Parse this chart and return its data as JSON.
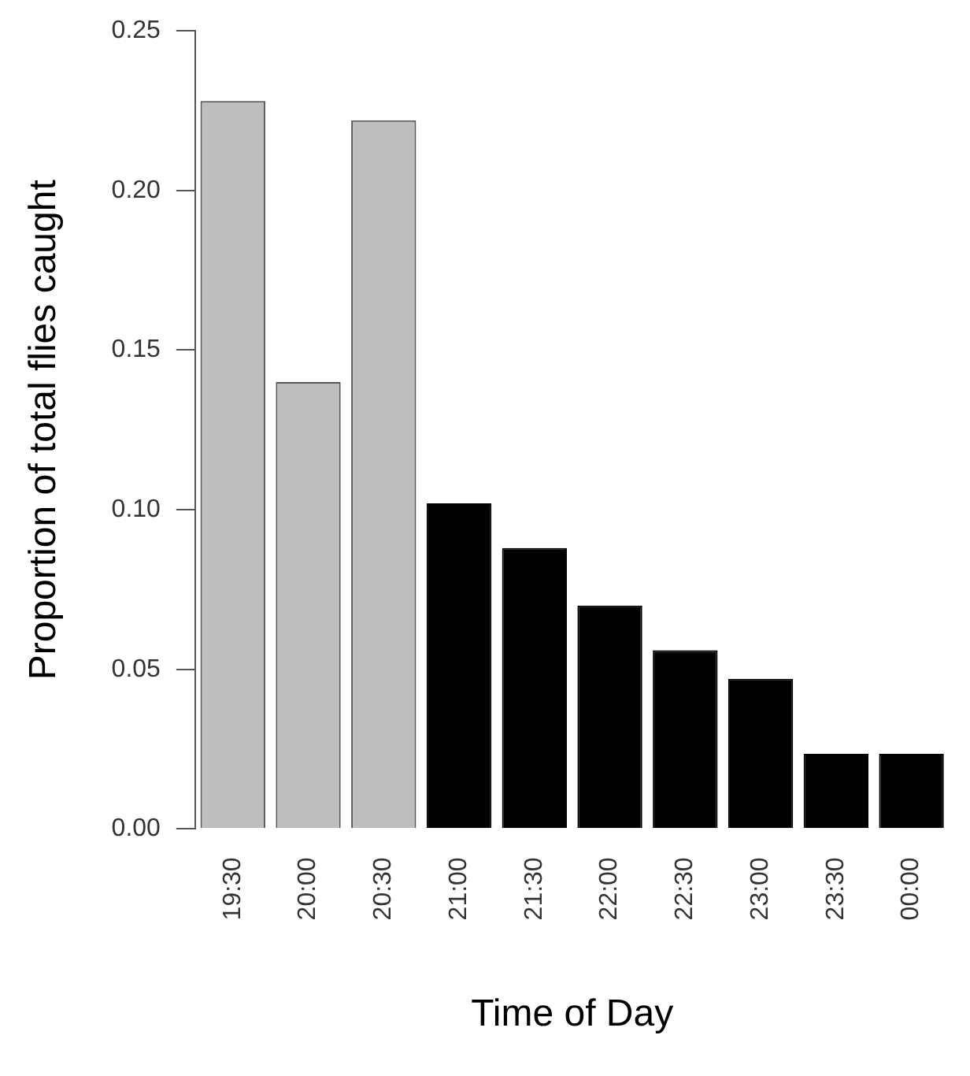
{
  "chart_data": {
    "type": "bar",
    "xlabel": "Time of Day",
    "ylabel": "Proportion of total flies caught",
    "categories": [
      "19:30",
      "20:00",
      "20:30",
      "21:00",
      "21:30",
      "22:00",
      "22:30",
      "23:00",
      "23:30",
      "00:00"
    ],
    "values": [
      0.228,
      0.14,
      0.222,
      0.102,
      0.088,
      0.07,
      0.056,
      0.047,
      0.0235,
      0.0235
    ],
    "colors": [
      "#bebebe",
      "#bebebe",
      "#bebebe",
      "#000000",
      "#000000",
      "#000000",
      "#000000",
      "#000000",
      "#000000",
      "#000000"
    ],
    "ylim": [
      0,
      0.25
    ],
    "yticks": [
      {
        "value": 0,
        "label": "0.00"
      },
      0.05,
      {
        "value": 0.1,
        "label": "0.10"
      },
      0.15,
      {
        "value": 0.2,
        "label": "0.20"
      },
      0.25
    ],
    "grid": false,
    "legend": false
  }
}
